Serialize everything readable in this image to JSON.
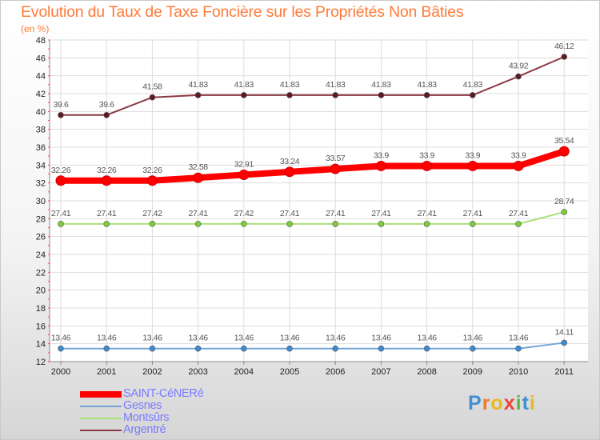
{
  "title": "Evolution du Taux de Taxe Foncière sur les Propriétés Non Bâties",
  "unit": "(en %)",
  "logo": {
    "letters": [
      {
        "ch": "P",
        "color": "#3f8fd2"
      },
      {
        "ch": "r",
        "color": "#ef7a2e"
      },
      {
        "ch": "o",
        "color": "#e8b820"
      },
      {
        "ch": "x",
        "color": "#e8453c"
      },
      {
        "ch": "i",
        "color": "#58b848"
      },
      {
        "ch": "t",
        "color": "#3f8fd2"
      },
      {
        "ch": "i",
        "color": "#e8b820"
      }
    ]
  },
  "chart_data": {
    "type": "line",
    "x": [
      "2000",
      "2001",
      "2002",
      "2003",
      "2004",
      "2005",
      "2006",
      "2007",
      "2008",
      "2009",
      "2010",
      "2011"
    ],
    "ylim": [
      12,
      48
    ],
    "yticks": [
      12,
      14,
      16,
      18,
      20,
      22,
      24,
      26,
      28,
      30,
      32,
      34,
      36,
      38,
      40,
      42,
      44,
      46,
      48
    ],
    "grid": true,
    "legend_position": "bottom-left",
    "series": [
      {
        "name": "SAINT-CéNERé",
        "color": "#ff0000",
        "marker": "#ff0000",
        "width": 8,
        "values": [
          32.26,
          32.26,
          32.26,
          32.58,
          32.91,
          33.24,
          33.57,
          33.9,
          33.9,
          33.9,
          33.9,
          35.54
        ],
        "labels": [
          "32.26",
          "32.26",
          "32.26",
          "32.58",
          "32.91",
          "33.24",
          "33.57",
          "33.9",
          "33.9",
          "33.9",
          "33.9",
          "35.54"
        ]
      },
      {
        "name": "Gesnes",
        "color": "#74a6d6",
        "marker": "#3f8ad0",
        "width": 2,
        "values": [
          13.46,
          13.46,
          13.46,
          13.46,
          13.46,
          13.46,
          13.46,
          13.46,
          13.46,
          13.46,
          13.46,
          14.11
        ],
        "labels": [
          "13.46",
          "13.46",
          "13.46",
          "13.46",
          "13.46",
          "13.46",
          "13.46",
          "13.46",
          "13.46",
          "13.46",
          "13.46",
          "14.11"
        ]
      },
      {
        "name": "Montsûrs",
        "color": "#a8e07a",
        "marker": "#7fcc3a",
        "width": 2,
        "values": [
          27.41,
          27.41,
          27.42,
          27.41,
          27.42,
          27.41,
          27.41,
          27.41,
          27.41,
          27.41,
          27.41,
          28.74
        ],
        "labels": [
          "27.41",
          "27.41",
          "27.42",
          "27.41",
          "27.42",
          "27.41",
          "27.41",
          "27.41",
          "27.41",
          "27.41",
          "27.41",
          "28.74"
        ]
      },
      {
        "name": "Argentré",
        "color": "#8a3a44",
        "marker": "#5e1a22",
        "width": 2,
        "values": [
          39.6,
          39.6,
          41.58,
          41.83,
          41.83,
          41.83,
          41.83,
          41.83,
          41.83,
          41.83,
          43.92,
          46.12
        ],
        "labels": [
          "39.6",
          "39.6",
          "41.58",
          "41.83",
          "41.83",
          "41.83",
          "41.83",
          "41.83",
          "41.83",
          "41.83",
          "43.92",
          "46.12"
        ]
      }
    ]
  }
}
